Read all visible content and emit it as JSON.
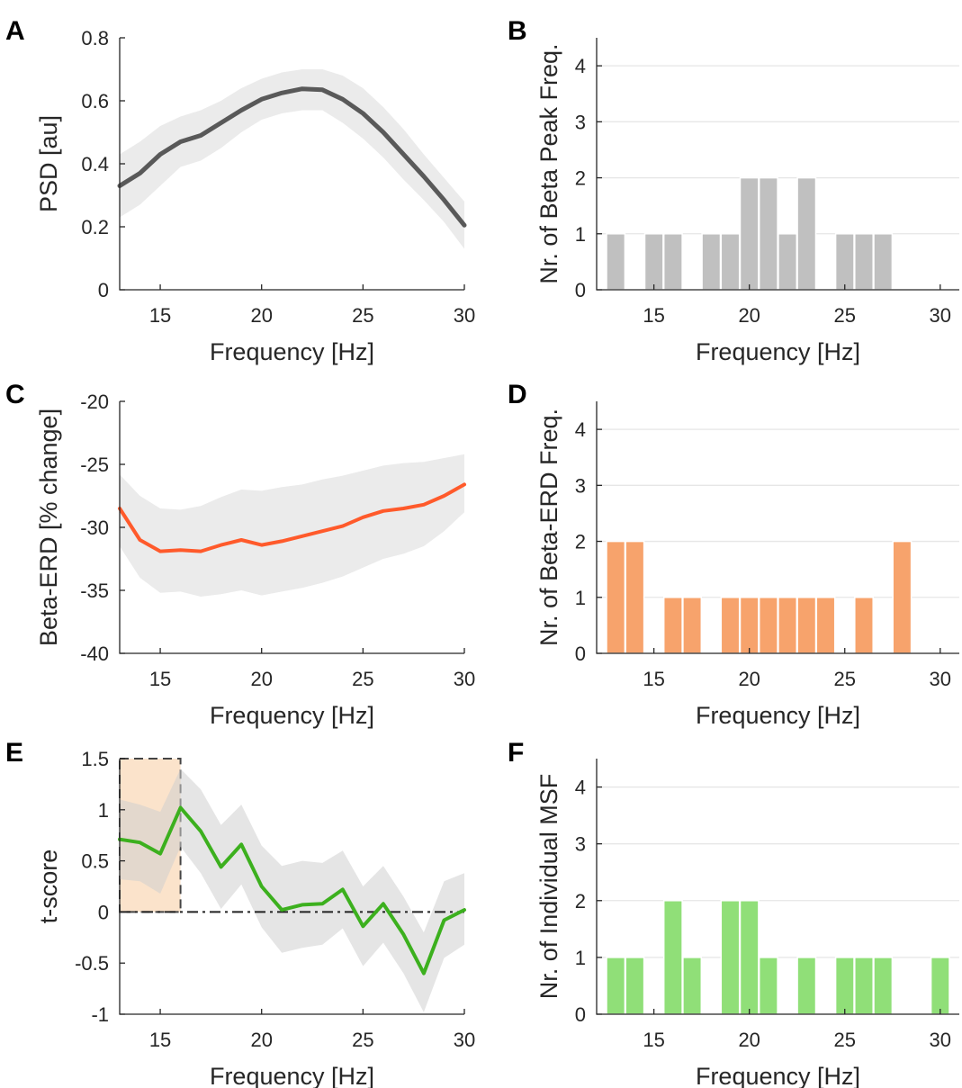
{
  "colors": {
    "gray_line": "#595959",
    "gray_band": "#ebebeb",
    "gray_bar": "#c0c0c0",
    "orange_line": "#ff5a2b",
    "orange_bar": "#f7a36c",
    "green_line": "#3cb01e",
    "green_bar": "#90df78",
    "highlight_fill": "#fbe3cb"
  },
  "chart_data": [
    {
      "panel": "A",
      "type": "line",
      "xlabel": "Frequency [Hz]",
      "ylabel": "PSD [au]",
      "xlim": [
        13,
        30
      ],
      "ylim": [
        0,
        0.8
      ],
      "xticks": [
        15,
        20,
        25,
        30
      ],
      "yticks": [
        0,
        0.2,
        0.4,
        0.6,
        0.8
      ],
      "ytick_labels": [
        "0",
        "0.2",
        "0.4",
        "0.6",
        "0.8"
      ],
      "grid": false,
      "series": [
        {
          "x": [
            13,
            14,
            15,
            16,
            17,
            18,
            19,
            20,
            21,
            22,
            23,
            24,
            25,
            26,
            27,
            28,
            29,
            30
          ],
          "y": [
            0.33,
            0.37,
            0.43,
            0.47,
            0.49,
            0.53,
            0.57,
            0.605,
            0.625,
            0.638,
            0.635,
            0.605,
            0.56,
            0.5,
            0.43,
            0.36,
            0.285,
            0.205
          ],
          "band_upper": [
            0.43,
            0.47,
            0.52,
            0.55,
            0.57,
            0.6,
            0.64,
            0.67,
            0.69,
            0.7,
            0.7,
            0.68,
            0.64,
            0.58,
            0.51,
            0.43,
            0.355,
            0.28
          ],
          "band_lower": [
            0.23,
            0.27,
            0.33,
            0.39,
            0.41,
            0.45,
            0.5,
            0.54,
            0.56,
            0.57,
            0.57,
            0.53,
            0.48,
            0.42,
            0.35,
            0.285,
            0.215,
            0.13
          ]
        }
      ]
    },
    {
      "panel": "B",
      "type": "bar",
      "xlabel": "Frequency [Hz]",
      "ylabel": "Nr. of Beta Peak Freq.",
      "xlim": [
        12,
        31
      ],
      "ylim": [
        0,
        4.5
      ],
      "xticks": [
        15,
        20,
        25,
        30
      ],
      "yticks": [
        0,
        1,
        2,
        3,
        4
      ],
      "grid": true,
      "x": [
        13,
        14,
        15,
        16,
        17,
        18,
        19,
        20,
        21,
        22,
        23,
        24,
        25,
        26,
        27,
        28,
        29,
        30
      ],
      "values": [
        1,
        0,
        1,
        1,
        0,
        1,
        1,
        2,
        2,
        1,
        2,
        0,
        1,
        1,
        1,
        0,
        0,
        0
      ]
    },
    {
      "panel": "C",
      "type": "line",
      "xlabel": "Frequency [Hz]",
      "ylabel": "Beta-ERD [% change]",
      "xlim": [
        13,
        30
      ],
      "ylim": [
        -40,
        -20
      ],
      "xticks": [
        15,
        20,
        25,
        30
      ],
      "yticks": [
        -40,
        -35,
        -30,
        -25,
        -20
      ],
      "grid": false,
      "series": [
        {
          "x": [
            13,
            14,
            15,
            16,
            17,
            18,
            19,
            20,
            21,
            22,
            23,
            24,
            25,
            26,
            27,
            28,
            29,
            30
          ],
          "y": [
            -28.5,
            -31,
            -31.9,
            -31.8,
            -31.9,
            -31.4,
            -31.0,
            -31.4,
            -31.1,
            -30.7,
            -30.3,
            -29.9,
            -29.2,
            -28.7,
            -28.5,
            -28.2,
            -27.5,
            -26.6
          ],
          "band_upper": [
            -25.8,
            -27.5,
            -28.5,
            -28.6,
            -28.3,
            -27.6,
            -27.0,
            -27.1,
            -26.8,
            -26.6,
            -26.2,
            -25.9,
            -25.5,
            -25.1,
            -24.9,
            -24.8,
            -24.5,
            -24.2
          ],
          "band_lower": [
            -31.5,
            -34.0,
            -35.2,
            -35.1,
            -35.5,
            -35.3,
            -35.0,
            -35.4,
            -35.1,
            -34.8,
            -34.4,
            -33.9,
            -33.2,
            -32.5,
            -32.1,
            -31.5,
            -30.3,
            -28.8
          ]
        }
      ]
    },
    {
      "panel": "D",
      "type": "bar",
      "xlabel": "Frequency [Hz]",
      "ylabel": "Nr. of Beta-ERD Freq.",
      "xlim": [
        12,
        31
      ],
      "ylim": [
        0,
        4.5
      ],
      "xticks": [
        15,
        20,
        25,
        30
      ],
      "yticks": [
        0,
        1,
        2,
        3,
        4
      ],
      "grid": true,
      "x": [
        13,
        14,
        15,
        16,
        17,
        18,
        19,
        20,
        21,
        22,
        23,
        24,
        25,
        26,
        27,
        28,
        29,
        30
      ],
      "values": [
        2,
        2,
        0,
        1,
        1,
        0,
        1,
        1,
        1,
        1,
        1,
        1,
        0,
        1,
        0,
        2,
        0,
        0
      ]
    },
    {
      "panel": "E",
      "type": "line",
      "xlabel": "Frequency [Hz]",
      "ylabel": "t-score",
      "xlim": [
        13,
        30
      ],
      "ylim": [
        -1,
        1.5
      ],
      "xticks": [
        15,
        20,
        25,
        30
      ],
      "yticks": [
        -1,
        -0.5,
        0,
        0.5,
        1,
        1.5
      ],
      "ytick_labels": [
        "-1",
        "-0.5",
        "0",
        "0.5",
        "1",
        "1.5"
      ],
      "grid": false,
      "zero_line": true,
      "highlight_range": [
        13,
        16
      ],
      "series": [
        {
          "x": [
            13,
            14,
            15,
            16,
            17,
            18,
            19,
            20,
            21,
            22,
            23,
            24,
            25,
            26,
            27,
            28,
            29,
            30
          ],
          "y": [
            0.71,
            0.68,
            0.57,
            1.02,
            0.79,
            0.44,
            0.66,
            0.25,
            0.02,
            0.07,
            0.08,
            0.22,
            -0.14,
            0.08,
            -0.22,
            -0.6,
            -0.08,
            0.02
          ],
          "band_upper": [
            1.1,
            1.05,
            0.98,
            1.4,
            1.2,
            0.85,
            1.05,
            0.65,
            0.45,
            0.5,
            0.48,
            0.6,
            0.25,
            0.45,
            0.15,
            -0.2,
            0.3,
            0.38
          ],
          "band_lower": [
            0.32,
            0.3,
            0.18,
            0.64,
            0.38,
            0.03,
            0.27,
            -0.15,
            -0.4,
            -0.35,
            -0.32,
            -0.16,
            -0.53,
            -0.3,
            -0.6,
            -0.98,
            -0.45,
            -0.32
          ]
        }
      ]
    },
    {
      "panel": "F",
      "type": "bar",
      "xlabel": "Frequency [Hz]",
      "ylabel": "Nr. of Individual MSF",
      "xlim": [
        12,
        31
      ],
      "ylim": [
        0,
        4.5
      ],
      "xticks": [
        15,
        20,
        25,
        30
      ],
      "yticks": [
        0,
        1,
        2,
        3,
        4
      ],
      "grid": true,
      "x": [
        13,
        14,
        15,
        16,
        17,
        18,
        19,
        20,
        21,
        22,
        23,
        24,
        25,
        26,
        27,
        28,
        29,
        30
      ],
      "values": [
        1,
        1,
        0,
        2,
        1,
        0,
        2,
        2,
        1,
        0,
        1,
        0,
        1,
        1,
        1,
        0,
        0,
        1
      ]
    }
  ]
}
